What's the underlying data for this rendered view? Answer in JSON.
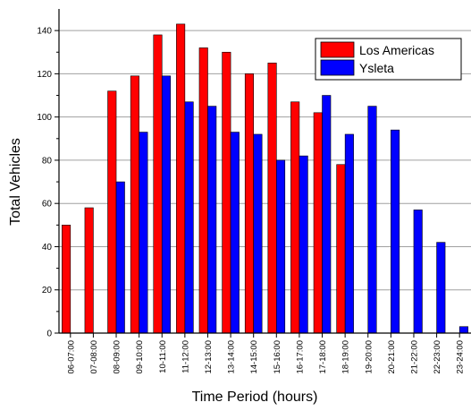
{
  "chart_data": {
    "type": "bar",
    "title": "",
    "xlabel": "Time Period (hours)",
    "ylabel": "Total Vehicles",
    "ylim": [
      0,
      150
    ],
    "yticks": [
      0,
      20,
      40,
      60,
      80,
      100,
      120,
      140
    ],
    "grid": true,
    "legend_position": "top-right",
    "categories": [
      "06-07:00",
      "07-08:00",
      "08-09:00",
      "09-10:00",
      "10-11:00",
      "11-12:00",
      "12-13:00",
      "13-14:00",
      "14-15:00",
      "15-16:00",
      "16-17:00",
      "17-18:00",
      "18-19:00",
      "19-20:00",
      "20-21:00",
      "21-22:00",
      "22-23:00",
      "23-24:00"
    ],
    "series": [
      {
        "name": "Los Americas",
        "color": "#ff0000",
        "values": [
          50,
          58,
          112,
          119,
          138,
          143,
          132,
          130,
          120,
          125,
          107,
          102,
          78,
          0,
          0,
          0,
          0,
          0
        ]
      },
      {
        "name": "Ysleta",
        "color": "#0000ff",
        "values": [
          0,
          0,
          70,
          93,
          119,
          107,
          105,
          93,
          92,
          80,
          82,
          110,
          92,
          105,
          94,
          57,
          42,
          3
        ]
      }
    ]
  }
}
